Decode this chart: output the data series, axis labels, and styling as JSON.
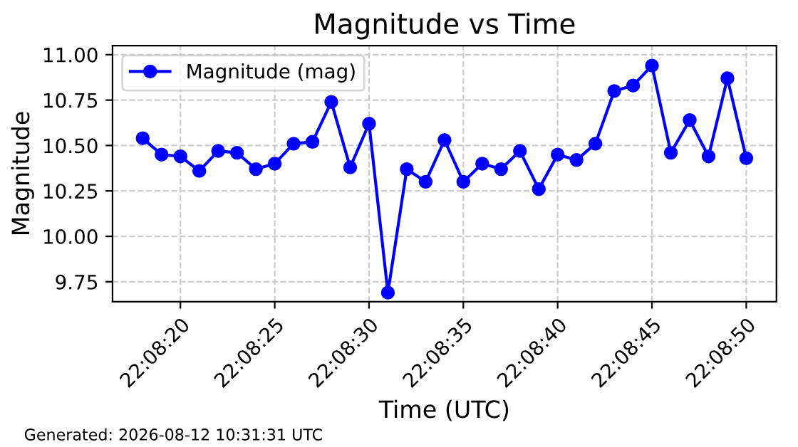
{
  "chart_data": {
    "type": "line",
    "title": "Magnitude vs Time",
    "xlabel": "Time (UTC)",
    "ylabel": "Magnitude",
    "x": [
      "2026-08-12T22:08:18",
      "2026-08-12T22:08:19",
      "2026-08-12T22:08:20",
      "2026-08-12T22:08:21",
      "2026-08-12T22:08:22",
      "2026-08-12T22:08:23",
      "2026-08-12T22:08:24",
      "2026-08-12T22:08:25",
      "2026-08-12T22:08:26",
      "2026-08-12T22:08:27",
      "2026-08-12T22:08:28",
      "2026-08-12T22:08:29",
      "2026-08-12T22:08:30",
      "2026-08-12T22:08:31",
      "2026-08-12T22:08:32",
      "2026-08-12T22:08:33",
      "2026-08-12T22:08:34",
      "2026-08-12T22:08:35",
      "2026-08-12T22:08:36",
      "2026-08-12T22:08:37",
      "2026-08-12T22:08:38",
      "2026-08-12T22:08:39",
      "2026-08-12T22:08:40",
      "2026-08-12T22:08:41",
      "2026-08-12T22:08:42",
      "2026-08-12T22:08:43",
      "2026-08-12T22:08:44",
      "2026-08-12T22:08:45",
      "2026-08-12T22:08:46",
      "2026-08-12T22:08:47",
      "2026-08-12T22:08:48",
      "2026-08-12T22:08:49",
      "2026-08-12T22:08:50"
    ],
    "series": [
      {
        "name": "Magnitude (mag)",
        "color": "#0000ff",
        "values": [
          10.54,
          10.45,
          10.44,
          10.36,
          10.47,
          10.46,
          10.37,
          10.4,
          10.51,
          10.52,
          10.74,
          10.38,
          10.62,
          9.69,
          10.37,
          10.3,
          10.53,
          10.3,
          10.4,
          10.37,
          10.47,
          10.26,
          10.45,
          10.42,
          10.51,
          10.8,
          10.83,
          10.94,
          10.46,
          10.64,
          10.44,
          10.87,
          10.43
        ]
      }
    ],
    "xlim": [
      "2026-08-12T22:08:16.4",
      "2026-08-12T22:08:51.6"
    ],
    "xticks": [
      {
        "value": "2026-08-12T22:08:20",
        "label": "22:08:20"
      },
      {
        "value": "2026-08-12T22:08:25",
        "label": "22:08:25"
      },
      {
        "value": "2026-08-12T22:08:30",
        "label": "22:08:30"
      },
      {
        "value": "2026-08-12T22:08:35",
        "label": "22:08:35"
      },
      {
        "value": "2026-08-12T22:08:40",
        "label": "22:08:40"
      },
      {
        "value": "2026-08-12T22:08:45",
        "label": "22:08:45"
      },
      {
        "value": "2026-08-12T22:08:50",
        "label": "22:08:50"
      }
    ],
    "ylim": [
      9.64,
      11.05
    ],
    "yticks": [
      {
        "value": 9.75,
        "label": "9.75"
      },
      {
        "value": 10.0,
        "label": "10.00"
      },
      {
        "value": 10.25,
        "label": "10.25"
      },
      {
        "value": 10.5,
        "label": "10.50"
      },
      {
        "value": 10.75,
        "label": "10.75"
      },
      {
        "value": 11.0,
        "label": "11.00"
      }
    ],
    "grid": true,
    "legend": "top left",
    "marker": "circle",
    "line_style": "solid",
    "annotations": [
      "Generated: 2026-08-12 10:31:31 UTC"
    ]
  }
}
